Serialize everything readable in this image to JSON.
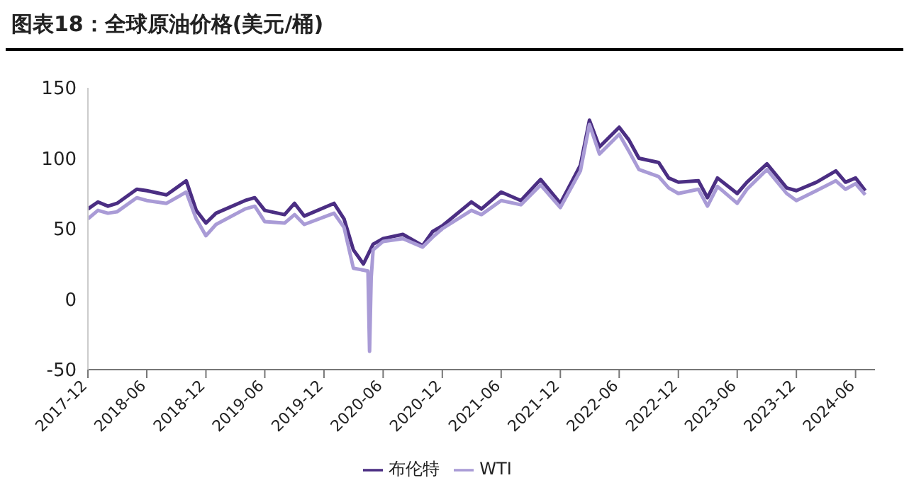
{
  "chart_data": {
    "type": "line",
    "title": "图表18：全球原油价格(美元/桶)",
    "xlim": [
      "2017-12",
      "2024-07-31"
    ],
    "xticks": [
      "2017-12",
      "2018-06",
      "2018-12",
      "2019-06",
      "2019-12",
      "2020-06",
      "2020-12",
      "2021-06",
      "2021-12",
      "2022-06",
      "2022-12",
      "2023-06",
      "2023-12",
      "2024-06"
    ],
    "ylim": [
      -50,
      150
    ],
    "yticks": [
      -50,
      0,
      50,
      100,
      150
    ],
    "legend": "bottom",
    "marker": "none",
    "line_style": "solid",
    "series": [
      {
        "name": "布伦特",
        "color": "#4b2e83",
        "x": [
          "2017-12",
          "2018-01",
          "2018-02",
          "2018-03",
          "2018-05",
          "2018-06",
          "2018-08",
          "2018-10",
          "2018-11",
          "2018-12",
          "2019-01",
          "2019-04",
          "2019-05",
          "2019-06",
          "2019-08",
          "2019-09",
          "2019-10",
          "2020-01",
          "2020-02",
          "2020-03",
          "2020-04",
          "2020-05",
          "2020-06",
          "2020-08",
          "2020-10",
          "2020-11",
          "2020-12",
          "2021-03",
          "2021-04",
          "2021-06",
          "2021-08",
          "2021-10",
          "2021-12",
          "2022-02",
          "2022-03",
          "2022-04",
          "2022-06",
          "2022-07",
          "2022-08",
          "2022-10",
          "2022-11",
          "2022-12",
          "2023-02",
          "2023-03",
          "2023-04",
          "2023-06",
          "2023-07",
          "2023-09",
          "2023-11",
          "2023-12",
          "2024-02",
          "2024-04",
          "2024-05",
          "2024-06",
          "2024-07"
        ],
        "values": [
          64,
          69,
          66,
          68,
          78,
          77,
          74,
          84,
          63,
          54,
          61,
          70,
          72,
          63,
          60,
          68,
          59,
          68,
          57,
          35,
          25,
          39,
          43,
          46,
          38,
          48,
          52,
          69,
          64,
          76,
          70,
          85,
          68,
          95,
          127,
          108,
          122,
          113,
          100,
          97,
          86,
          83,
          84,
          72,
          86,
          75,
          83,
          96,
          79,
          77,
          83,
          91,
          83,
          86,
          77
        ]
      },
      {
        "name": "WTI",
        "color": "#a99bd6",
        "x": [
          "2017-12",
          "2018-01",
          "2018-02",
          "2018-03",
          "2018-05",
          "2018-06",
          "2018-08",
          "2018-10",
          "2018-11",
          "2018-12",
          "2019-01",
          "2019-04",
          "2019-05",
          "2019-06",
          "2019-08",
          "2019-09",
          "2019-10",
          "2020-01",
          "2020-02",
          "2020-03",
          "2020-04-15",
          "2020-04-20",
          "2020-04-25",
          "2020-05",
          "2020-06",
          "2020-08",
          "2020-10",
          "2020-11",
          "2020-12",
          "2021-03",
          "2021-04",
          "2021-06",
          "2021-08",
          "2021-10",
          "2021-12",
          "2022-02",
          "2022-03",
          "2022-04",
          "2022-06",
          "2022-07",
          "2022-08",
          "2022-10",
          "2022-11",
          "2022-12",
          "2023-02",
          "2023-03",
          "2023-04",
          "2023-06",
          "2023-07",
          "2023-09",
          "2023-11",
          "2023-12",
          "2024-02",
          "2024-04",
          "2024-05",
          "2024-06",
          "2024-07"
        ],
        "values": [
          57,
          63,
          61,
          62,
          72,
          70,
          68,
          76,
          57,
          45,
          53,
          64,
          66,
          55,
          54,
          60,
          53,
          61,
          51,
          22,
          20,
          -37,
          15,
          35,
          41,
          43,
          37,
          44,
          50,
          63,
          60,
          70,
          67,
          81,
          65,
          91,
          124,
          103,
          117,
          105,
          92,
          87,
          79,
          75,
          78,
          66,
          80,
          68,
          78,
          92,
          75,
          70,
          77,
          84,
          78,
          82,
          74
        ]
      }
    ]
  }
}
